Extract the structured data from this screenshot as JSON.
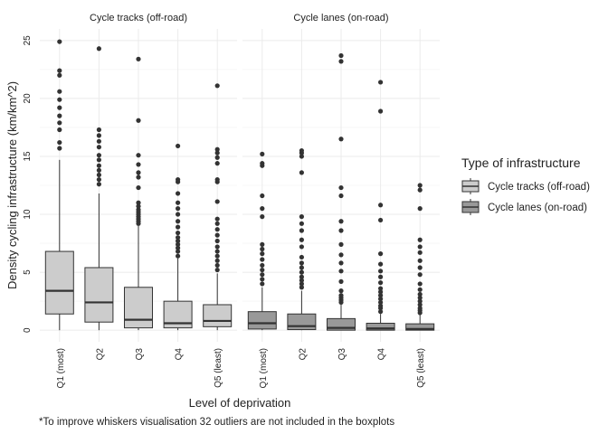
{
  "chart_data": {
    "type": "boxplot",
    "xlabel": "Level of deprivation",
    "ylabel": "Density cycling infrastructure (km/km^2)",
    "ylim": [
      -1,
      26
    ],
    "yticks": [
      0,
      5,
      10,
      15,
      20,
      25
    ],
    "categories": [
      "Q1 (most)",
      "Q2",
      "Q3",
      "Q4",
      "Q5 (least)"
    ],
    "legend": {
      "title": "Type of infrastructure",
      "placement": "right"
    },
    "footnote": "*To improve whiskers visualisation 32 outliers are not included in the boxplots",
    "series": [
      {
        "name": "Cycle tracks (off-road)",
        "panel_title": "Cycle tracks (off-road)",
        "color": "#cccccc",
        "boxes": [
          {
            "category": "Q1 (most)",
            "min": 0,
            "q1": 1.4,
            "median": 3.4,
            "q3": 6.8,
            "max": 14.7,
            "outliers": [
              15.7,
              16.2,
              17.3,
              17.9,
              18.5,
              19.2,
              19.9,
              20.6,
              22.0,
              22.4,
              24.9
            ]
          },
          {
            "category": "Q2",
            "min": 0,
            "q1": 0.7,
            "median": 2.4,
            "q3": 5.4,
            "max": 11.8,
            "outliers": [
              12.6,
              13.0,
              13.4,
              13.8,
              14.2,
              14.7,
              15.1,
              15.8,
              16.3,
              16.8,
              17.3,
              24.3
            ]
          },
          {
            "category": "Q3",
            "min": 0,
            "q1": 0.2,
            "median": 0.9,
            "q3": 3.7,
            "max": 9.0,
            "outliers": [
              9.2,
              9.4,
              9.6,
              9.8,
              10.0,
              10.2,
              10.4,
              10.7,
              11.0,
              12.3,
              13.2,
              13.6,
              14.3,
              15.1,
              18.1,
              23.4
            ]
          },
          {
            "category": "Q4",
            "min": 0,
            "q1": 0.2,
            "median": 0.6,
            "q3": 2.5,
            "max": 6.2,
            "outliers": [
              6.4,
              6.8,
              7.1,
              7.4,
              7.7,
              8.0,
              8.4,
              8.9,
              9.4,
              10.0,
              10.5,
              11.0,
              11.8,
              12.8,
              13.0,
              15.9
            ]
          },
          {
            "category": "Q5 (least)",
            "min": 0,
            "q1": 0.3,
            "median": 0.8,
            "q3": 2.2,
            "max": 4.9,
            "outliers": [
              5.2,
              5.6,
              6.0,
              6.4,
              6.8,
              7.2,
              7.7,
              8.2,
              8.7,
              9.2,
              9.6,
              11.1,
              12.8,
              13.0,
              14.4,
              14.9,
              15.3,
              15.6,
              21.1
            ]
          }
        ]
      },
      {
        "name": "Cycle lanes (on-road)",
        "panel_title": "Cycle lanes (on-road)",
        "color": "#999999",
        "boxes": [
          {
            "category": "Q1 (most)",
            "min": 0,
            "q1": 0.1,
            "median": 0.6,
            "q3": 1.6,
            "max": 3.7,
            "outliers": [
              4.0,
              4.4,
              4.8,
              5.2,
              5.6,
              6.1,
              6.6,
              7.0,
              7.4,
              9.8,
              10.5,
              11.6,
              14.2,
              14.4,
              15.2
            ]
          },
          {
            "category": "Q2",
            "min": 0,
            "q1": 0.05,
            "median": 0.35,
            "q3": 1.4,
            "max": 3.4,
            "outliers": [
              3.7,
              4.0,
              4.3,
              4.6,
              5.0,
              5.4,
              5.8,
              6.3,
              7.2,
              7.8,
              8.6,
              9.2,
              9.8,
              13.6,
              15.0,
              15.3,
              15.5
            ]
          },
          {
            "category": "Q3",
            "min": 0,
            "q1": 0.0,
            "median": 0.2,
            "q3": 1.0,
            "max": 2.2,
            "outliers": [
              2.4,
              2.6,
              2.8,
              3.0,
              3.4,
              4.2,
              5.1,
              5.8,
              6.5,
              7.4,
              8.6,
              9.4,
              11.6,
              12.3,
              16.5,
              23.2,
              23.7
            ]
          },
          {
            "category": "Q4",
            "min": 0,
            "q1": 0.0,
            "median": 0.15,
            "q3": 0.6,
            "max": 1.4,
            "outliers": [
              1.6,
              1.9,
              2.1,
              2.4,
              2.7,
              3.0,
              3.3,
              3.6,
              4.1,
              4.6,
              5.1,
              5.7,
              6.6,
              9.5,
              10.8,
              18.9,
              21.4
            ]
          },
          {
            "category": "Q5 (least)",
            "min": 0,
            "q1": 0.0,
            "median": 0.1,
            "q3": 0.55,
            "max": 1.3,
            "outliers": [
              1.5,
              1.7,
              1.9,
              2.2,
              2.5,
              2.8,
              3.1,
              3.5,
              4.0,
              4.8,
              5.4,
              6.0,
              6.7,
              7.2,
              7.8,
              10.5,
              12.1,
              12.5
            ]
          }
        ]
      }
    ]
  }
}
